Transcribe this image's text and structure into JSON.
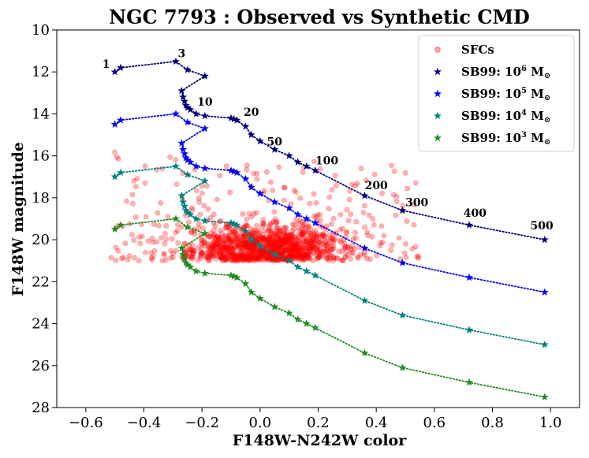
{
  "chart_data": {
    "type": "scatter",
    "title": "NGC 7793 : Observed vs Synthetic CMD",
    "xlabel": "F148W-N242W color",
    "ylabel": "F148W magnitude",
    "xlim": [
      -0.7,
      1.1
    ],
    "ylim": [
      28,
      10
    ],
    "y_inverted": true,
    "xticks": [
      -0.6,
      -0.4,
      -0.2,
      0.0,
      0.2,
      0.4,
      0.6,
      0.8,
      1.0
    ],
    "xtick_labels": [
      "−0.6",
      "−0.4",
      "−0.2",
      "0.0",
      "0.2",
      "0.4",
      "0.6",
      "0.8",
      "1.0"
    ],
    "yticks": [
      10,
      12,
      14,
      16,
      18,
      20,
      22,
      24,
      26,
      28
    ],
    "ytick_labels": [
      "10",
      "12",
      "14",
      "16",
      "18",
      "20",
      "22",
      "24",
      "26",
      "28"
    ],
    "legend_position": "top-right",
    "observed": {
      "name": "SFCs",
      "color": "#ff0000",
      "count": 1400,
      "core": {
        "x_center": 0.02,
        "x_spread": 0.13,
        "y_center": 20.4,
        "y_spread": 0.55
      },
      "x_range": [
        -0.52,
        0.63
      ],
      "y_range": [
        15.8,
        21.0
      ]
    },
    "age_labels": [
      {
        "text": "1",
        "x": -0.53,
        "y": 11.8
      },
      {
        "text": "3",
        "x": -0.27,
        "y": 11.3
      },
      {
        "text": "10",
        "x": -0.19,
        "y": 13.6
      },
      {
        "text": "20",
        "x": -0.03,
        "y": 14.1
      },
      {
        "text": "50",
        "x": 0.05,
        "y": 15.5
      },
      {
        "text": "100",
        "x": 0.23,
        "y": 16.4
      },
      {
        "text": "200",
        "x": 0.4,
        "y": 17.6
      },
      {
        "text": "300",
        "x": 0.54,
        "y": 18.4
      },
      {
        "text": "400",
        "x": 0.74,
        "y": 18.9
      },
      {
        "text": "500",
        "x": 0.97,
        "y": 19.5
      }
    ],
    "series": [
      {
        "name": "SB99: 10^6 M_sun",
        "legend_base": "SB99: 10",
        "legend_exp": "6",
        "legend_unit": " M",
        "color": "#00007a",
        "x": [
          -0.5,
          -0.48,
          -0.29,
          -0.25,
          -0.19,
          -0.27,
          -0.265,
          -0.26,
          -0.255,
          -0.25,
          -0.24,
          -0.22,
          -0.19,
          -0.1,
          -0.09,
          -0.08,
          -0.05,
          -0.03,
          0.0,
          0.05,
          0.1,
          0.13,
          0.16,
          0.19,
          0.36,
          0.49,
          0.72,
          0.98
        ],
        "y": [
          12.0,
          11.8,
          11.5,
          11.9,
          12.2,
          12.9,
          13.2,
          13.4,
          13.6,
          13.7,
          13.8,
          14.0,
          14.1,
          14.2,
          14.25,
          14.3,
          14.6,
          15.0,
          15.3,
          15.7,
          16.0,
          16.3,
          16.5,
          16.7,
          17.9,
          18.6,
          19.3,
          20.0
        ]
      },
      {
        "name": "SB99: 10^5 M_sun",
        "legend_base": "SB99: 10",
        "legend_exp": "5",
        "legend_unit": " M",
        "color": "#0000ff",
        "x": [
          -0.5,
          -0.48,
          -0.29,
          -0.25,
          -0.19,
          -0.27,
          -0.265,
          -0.26,
          -0.255,
          -0.25,
          -0.24,
          -0.22,
          -0.19,
          -0.1,
          -0.09,
          -0.08,
          -0.05,
          -0.03,
          0.0,
          0.05,
          0.1,
          0.13,
          0.16,
          0.19,
          0.36,
          0.49,
          0.72,
          0.98
        ],
        "y": [
          14.5,
          14.3,
          14.0,
          14.4,
          14.7,
          15.4,
          15.7,
          15.9,
          16.1,
          16.2,
          16.3,
          16.5,
          16.6,
          16.7,
          16.75,
          16.8,
          17.1,
          17.5,
          17.8,
          18.2,
          18.5,
          18.8,
          19.0,
          19.2,
          20.4,
          21.1,
          21.8,
          22.5
        ]
      },
      {
        "name": "SB99: 10^4 M_sun",
        "legend_base": "SB99: 10",
        "legend_exp": "4",
        "legend_unit": " M",
        "color": "#008080",
        "x": [
          -0.5,
          -0.48,
          -0.29,
          -0.25,
          -0.19,
          -0.27,
          -0.265,
          -0.26,
          -0.255,
          -0.25,
          -0.24,
          -0.22,
          -0.19,
          -0.1,
          -0.09,
          -0.08,
          -0.05,
          -0.03,
          0.0,
          0.05,
          0.1,
          0.13,
          0.16,
          0.19,
          0.36,
          0.49,
          0.72,
          0.98
        ],
        "y": [
          17.0,
          16.8,
          16.5,
          16.9,
          17.2,
          17.9,
          18.2,
          18.4,
          18.6,
          18.7,
          18.8,
          19.0,
          19.1,
          19.2,
          19.25,
          19.3,
          19.6,
          20.0,
          20.3,
          20.7,
          21.0,
          21.3,
          21.5,
          21.7,
          22.9,
          23.6,
          24.3,
          25.0
        ]
      },
      {
        "name": "SB99: 10^3 M_sun",
        "legend_base": "SB99: 10",
        "legend_exp": "3",
        "legend_unit": " M",
        "color": "#228b22",
        "x": [
          -0.5,
          -0.48,
          -0.29,
          -0.25,
          -0.19,
          -0.27,
          -0.265,
          -0.26,
          -0.255,
          -0.25,
          -0.24,
          -0.22,
          -0.19,
          -0.1,
          -0.09,
          -0.08,
          -0.05,
          -0.03,
          0.0,
          0.05,
          0.1,
          0.13,
          0.16,
          0.19,
          0.36,
          0.49,
          0.72,
          0.98
        ],
        "y": [
          19.5,
          19.3,
          19.0,
          19.4,
          19.7,
          20.4,
          20.7,
          20.9,
          21.1,
          21.2,
          21.3,
          21.5,
          21.6,
          21.7,
          21.75,
          21.8,
          22.1,
          22.5,
          22.8,
          23.2,
          23.5,
          23.8,
          24.0,
          24.2,
          25.4,
          26.1,
          26.8,
          27.5
        ]
      }
    ]
  }
}
